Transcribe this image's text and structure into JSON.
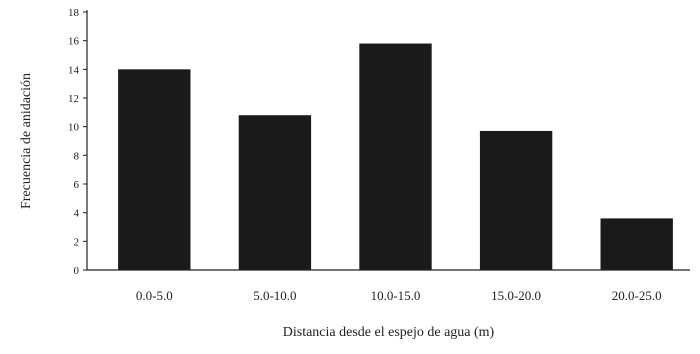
{
  "chart_data": {
    "type": "bar",
    "categories": [
      "0.0-5.0",
      "5.0-10.0",
      "10.0-15.0",
      "15.0-20.0",
      "20.0-25.0"
    ],
    "values": [
      14,
      10.8,
      15.8,
      9.7,
      3.6
    ],
    "xlabel": "Distancia desde el espejo de agua (m)",
    "ylabel": "Frecuencia de anidación",
    "ylim": [
      0,
      18
    ],
    "yticks": [
      0,
      2,
      4,
      6,
      8,
      10,
      12,
      14,
      16,
      18
    ],
    "grid": false,
    "legend": "none",
    "colors": {
      "bar": "#1a1a1a",
      "axis": "#222222",
      "background": "#ffffff"
    }
  }
}
